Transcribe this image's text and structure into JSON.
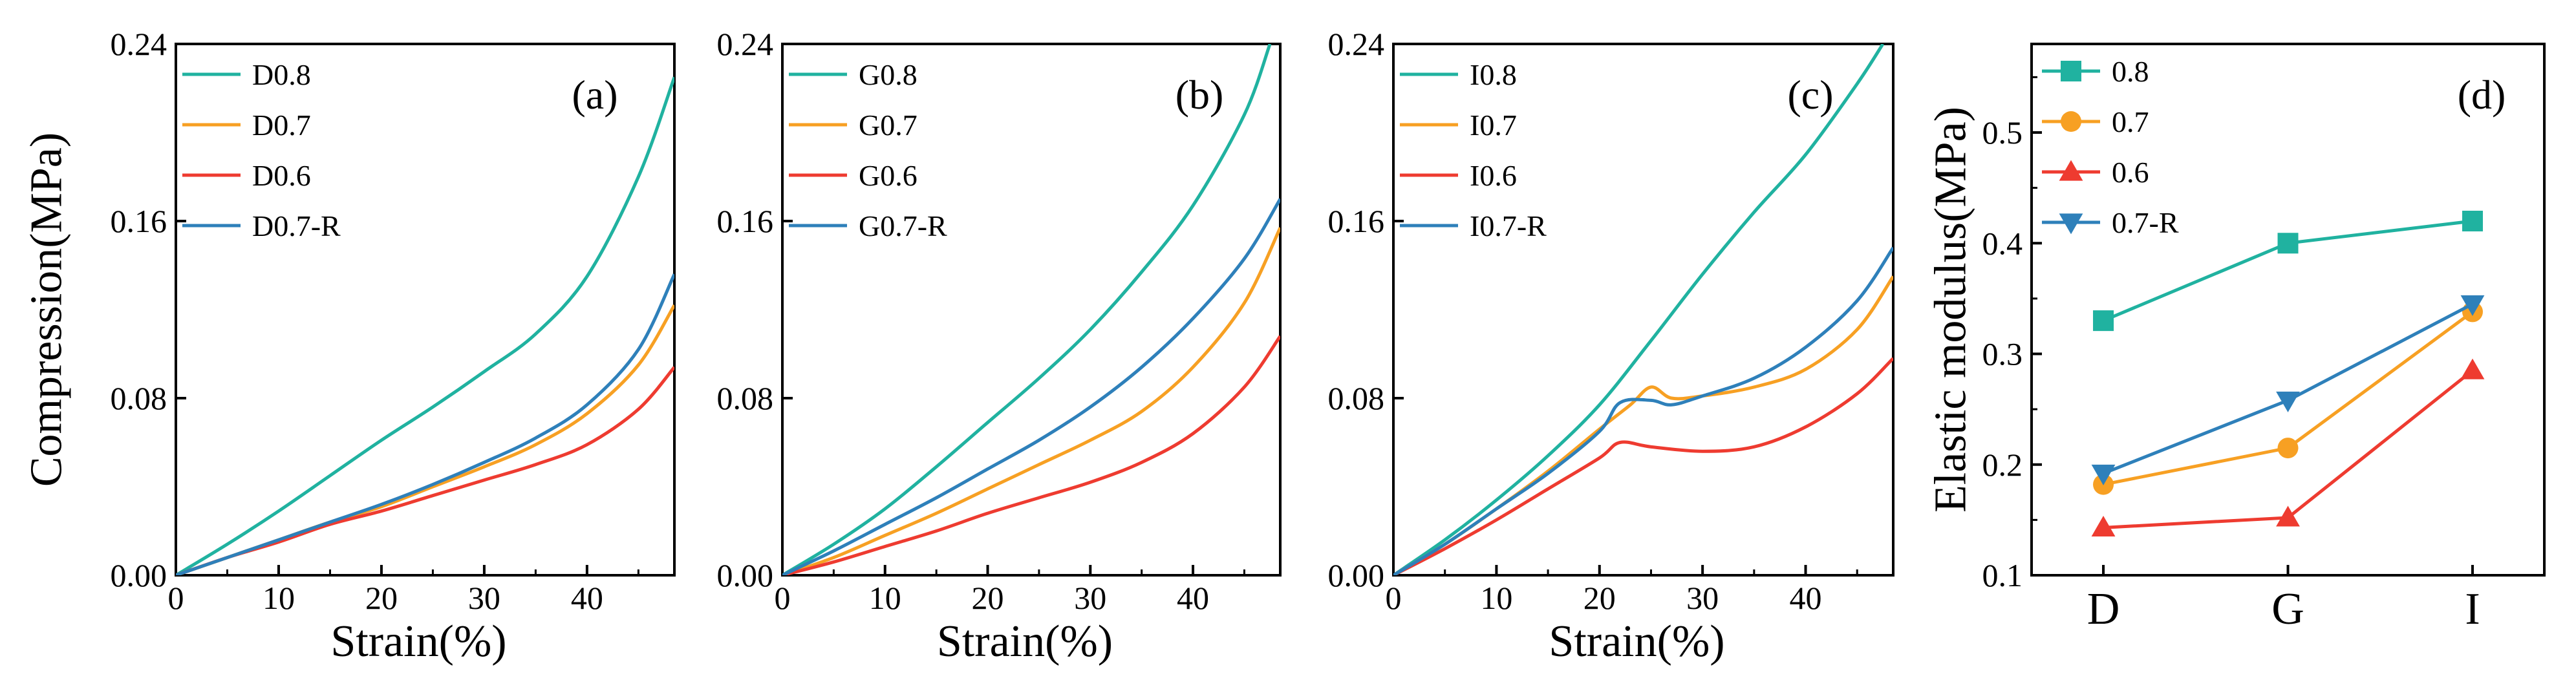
{
  "colors": {
    "teal": "#20B2A0",
    "orange": "#F7A023",
    "red": "#EE3B30",
    "blue": "#2E80BA"
  },
  "chart_data": [
    {
      "type": "line",
      "tag": "(a)",
      "xlabel": "Strain(%)",
      "ylabel": "Compression(MPa)",
      "xlim": [
        0,
        48.5
      ],
      "ylim": [
        0,
        0.24
      ],
      "xticks": [
        0,
        10,
        20,
        30,
        40
      ],
      "yticks": [
        0.0,
        0.08,
        0.16,
        0.24
      ],
      "ytick_labels": [
        "0.00",
        "0.08",
        "0.16",
        "0.24"
      ],
      "legend_position": "top-left",
      "series": [
        {
          "name": "D0.8",
          "color": "teal",
          "x": [
            0,
            5,
            10,
            15,
            20,
            25,
            30,
            35,
            40,
            45,
            48.5
          ],
          "y": [
            0,
            0.014,
            0.029,
            0.045,
            0.061,
            0.076,
            0.092,
            0.109,
            0.135,
            0.18,
            0.225
          ]
        },
        {
          "name": "D0.7",
          "color": "orange",
          "x": [
            0,
            5,
            10,
            15,
            20,
            25,
            30,
            35,
            40,
            45,
            48.5
          ],
          "y": [
            0,
            0.008,
            0.016,
            0.024,
            0.031,
            0.04,
            0.049,
            0.059,
            0.073,
            0.095,
            0.122
          ]
        },
        {
          "name": "D0.6",
          "color": "red",
          "x": [
            0,
            5,
            10,
            15,
            20,
            25,
            30,
            35,
            40,
            45,
            48.5
          ],
          "y": [
            0,
            0.008,
            0.015,
            0.023,
            0.029,
            0.036,
            0.043,
            0.05,
            0.059,
            0.075,
            0.094
          ]
        },
        {
          "name": "D0.7-R",
          "color": "blue",
          "x": [
            0,
            5,
            10,
            15,
            20,
            25,
            30,
            35,
            40,
            45,
            48.5
          ],
          "y": [
            0,
            0.008,
            0.016,
            0.024,
            0.032,
            0.041,
            0.051,
            0.062,
            0.077,
            0.102,
            0.136
          ]
        }
      ]
    },
    {
      "type": "line",
      "tag": "(b)",
      "xlabel": "Strain(%)",
      "ylabel": "",
      "xlim": [
        0,
        48.5
      ],
      "ylim": [
        0,
        0.24
      ],
      "xticks": [
        0,
        10,
        20,
        30,
        40
      ],
      "yticks": [
        0.0,
        0.08,
        0.16,
        0.24
      ],
      "ytick_labels": [
        "0.00",
        "0.08",
        "0.16",
        "0.24"
      ],
      "legend_position": "top-left",
      "series": [
        {
          "name": "G0.8",
          "color": "teal",
          "x": [
            0,
            5,
            10,
            15,
            20,
            25,
            30,
            35,
            40,
            45,
            47.5
          ],
          "y": [
            0,
            0.014,
            0.03,
            0.049,
            0.069,
            0.089,
            0.111,
            0.137,
            0.167,
            0.208,
            0.24
          ]
        },
        {
          "name": "G0.7",
          "color": "orange",
          "x": [
            0,
            5,
            10,
            15,
            20,
            25,
            30,
            35,
            40,
            45,
            48.5
          ],
          "y": [
            0,
            0.008,
            0.018,
            0.028,
            0.039,
            0.05,
            0.061,
            0.074,
            0.094,
            0.123,
            0.157
          ]
        },
        {
          "name": "G0.6",
          "color": "red",
          "x": [
            0,
            5,
            10,
            15,
            20,
            25,
            30,
            35,
            40,
            45,
            48.5
          ],
          "y": [
            0,
            0.006,
            0.013,
            0.02,
            0.028,
            0.035,
            0.042,
            0.051,
            0.064,
            0.085,
            0.108
          ]
        },
        {
          "name": "G0.7-R",
          "color": "blue",
          "x": [
            0,
            5,
            10,
            15,
            20,
            25,
            30,
            35,
            40,
            45,
            48.5
          ],
          "y": [
            0,
            0.011,
            0.023,
            0.035,
            0.048,
            0.061,
            0.076,
            0.094,
            0.116,
            0.143,
            0.17
          ]
        }
      ]
    },
    {
      "type": "line",
      "tag": "(c)",
      "xlabel": "Strain(%)",
      "ylabel": "",
      "xlim": [
        0,
        48.5
      ],
      "ylim": [
        0,
        0.24
      ],
      "xticks": [
        0,
        10,
        20,
        30,
        40
      ],
      "yticks": [
        0.0,
        0.08,
        0.16,
        0.24
      ],
      "ytick_labels": [
        "0.00",
        "0.08",
        "0.16",
        "0.24"
      ],
      "legend_position": "top-left",
      "series": [
        {
          "name": "I0.8",
          "color": "teal",
          "x": [
            0,
            5,
            10,
            15,
            20,
            25,
            30,
            35,
            40,
            45,
            47.5
          ],
          "y": [
            0,
            0.016,
            0.034,
            0.054,
            0.077,
            0.106,
            0.136,
            0.164,
            0.19,
            0.222,
            0.24
          ]
        },
        {
          "name": "I0.7",
          "color": "orange",
          "x": [
            0,
            5,
            10,
            15,
            20,
            23,
            25,
            27,
            30,
            35,
            40,
            45,
            48.5
          ],
          "y": [
            0,
            0.014,
            0.03,
            0.047,
            0.066,
            0.077,
            0.085,
            0.08,
            0.081,
            0.085,
            0.093,
            0.111,
            0.135
          ]
        },
        {
          "name": "I0.6",
          "color": "red",
          "x": [
            0,
            5,
            10,
            15,
            20,
            22,
            25,
            30,
            35,
            40,
            45,
            48.5
          ],
          "y": [
            0,
            0.012,
            0.025,
            0.039,
            0.053,
            0.06,
            0.058,
            0.056,
            0.058,
            0.067,
            0.082,
            0.098
          ]
        },
        {
          "name": "I0.7-R",
          "color": "blue",
          "x": [
            0,
            5,
            10,
            15,
            20,
            22,
            25,
            27,
            30,
            35,
            40,
            45,
            48.5
          ],
          "y": [
            0,
            0.014,
            0.03,
            0.046,
            0.065,
            0.078,
            0.079,
            0.077,
            0.081,
            0.089,
            0.103,
            0.124,
            0.148
          ]
        }
      ]
    },
    {
      "type": "line",
      "tag": "(d)",
      "xlabel": "",
      "ylabel": "Elastic modulus(MPa)",
      "categories": [
        "D",
        "G",
        "I"
      ],
      "ylim": [
        0.1,
        0.58
      ],
      "yticks": [
        0.1,
        0.2,
        0.3,
        0.4,
        0.5
      ],
      "ytick_labels": [
        "0.1",
        "0.2",
        "0.3",
        "0.4",
        "0.5"
      ],
      "legend_position": "top-left",
      "series": [
        {
          "name": "0.8",
          "color": "teal",
          "marker": "square",
          "values": [
            0.33,
            0.4,
            0.42
          ]
        },
        {
          "name": "0.7",
          "color": "orange",
          "marker": "circle",
          "values": [
            0.182,
            0.215,
            0.338
          ]
        },
        {
          "name": "0.6",
          "color": "red",
          "marker": "triangle-up",
          "values": [
            0.143,
            0.152,
            0.285
          ]
        },
        {
          "name": "0.7-R",
          "color": "blue",
          "marker": "triangle-down",
          "values": [
            0.192,
            0.258,
            0.345
          ]
        }
      ]
    }
  ]
}
